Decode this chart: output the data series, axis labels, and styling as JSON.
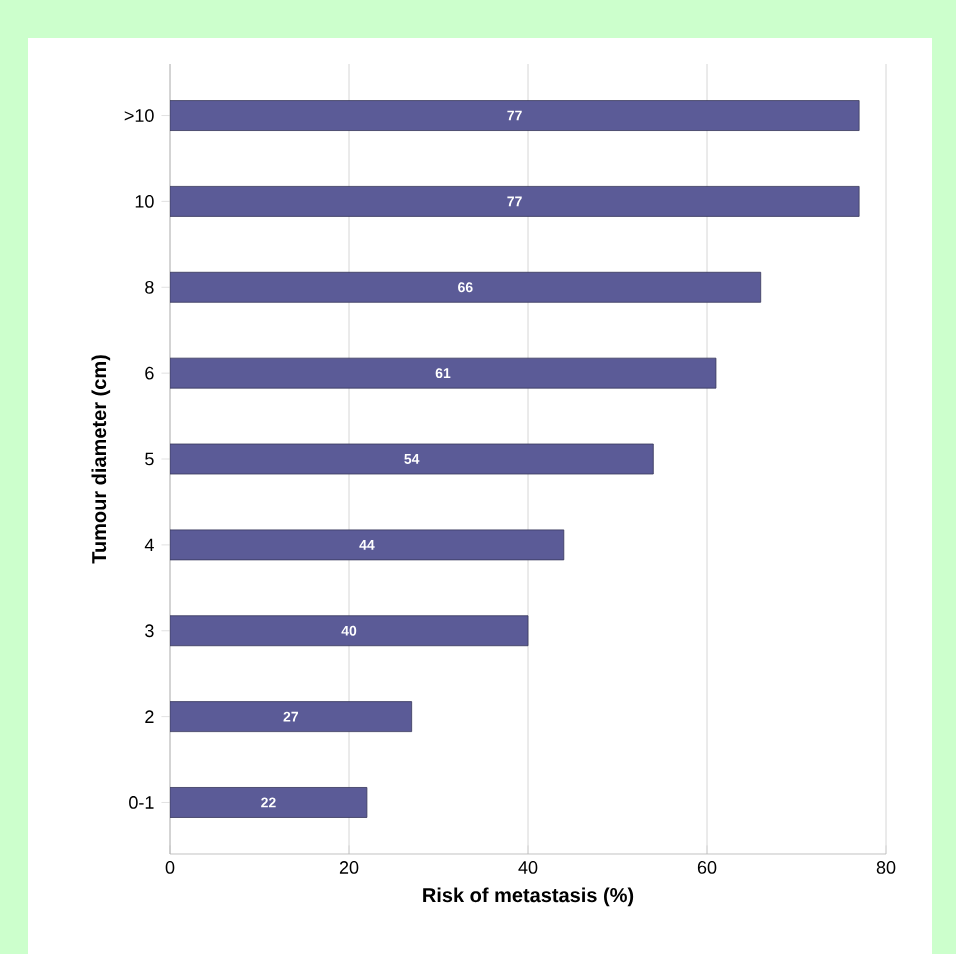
{
  "chart_data": {
    "type": "bar",
    "orientation": "horizontal",
    "xlabel": "Risk of metastasis (%)",
    "ylabel": "Tumour diameter (cm)",
    "categories": [
      ">10",
      "10",
      "8",
      "6",
      "5",
      "4",
      "3",
      "2",
      "0-1"
    ],
    "values": [
      77,
      77,
      66,
      61,
      54,
      44,
      40,
      27,
      22
    ],
    "color": "#5b5b97",
    "xlim": [
      0,
      80
    ],
    "xticks": [
      0,
      20,
      40,
      60,
      80
    ],
    "grid": "x",
    "data_labels": true
  }
}
